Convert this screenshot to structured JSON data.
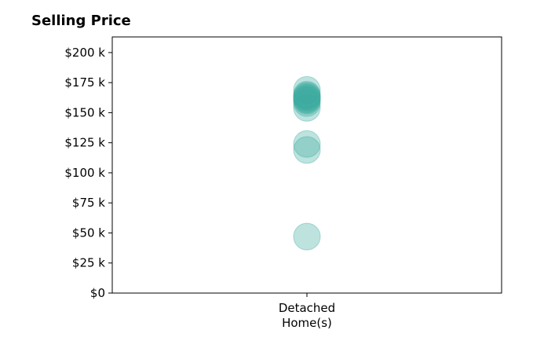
{
  "chart_data": {
    "type": "scatter",
    "title": "Selling Price",
    "xlabel": "",
    "ylabel": "",
    "categories": [
      [
        "Detached",
        "Home(s)"
      ]
    ],
    "y_ticks": [
      0,
      25000,
      50000,
      75000,
      100000,
      125000,
      150000,
      175000,
      200000
    ],
    "y_tick_labels": [
      "$0",
      "$25 k",
      "$50 k",
      "$75 k",
      "$100 k",
      "$125 k",
      "$150 k",
      "$175 k",
      "$200 k"
    ],
    "ylim": [
      0,
      213000
    ],
    "grid": false,
    "series": [
      {
        "color": "#3aa99f",
        "points": [
          {
            "category": 0,
            "y": 47000
          },
          {
            "category": 0,
            "y": 119000
          },
          {
            "category": 0,
            "y": 124000
          },
          {
            "category": 0,
            "y": 154000
          },
          {
            "category": 0,
            "y": 158000
          },
          {
            "category": 0,
            "y": 160000
          },
          {
            "category": 0,
            "y": 161000
          },
          {
            "category": 0,
            "y": 162000
          },
          {
            "category": 0,
            "y": 163000
          },
          {
            "category": 0,
            "y": 164000
          },
          {
            "category": 0,
            "y": 165000
          },
          {
            "category": 0,
            "y": 169000
          }
        ]
      }
    ]
  }
}
